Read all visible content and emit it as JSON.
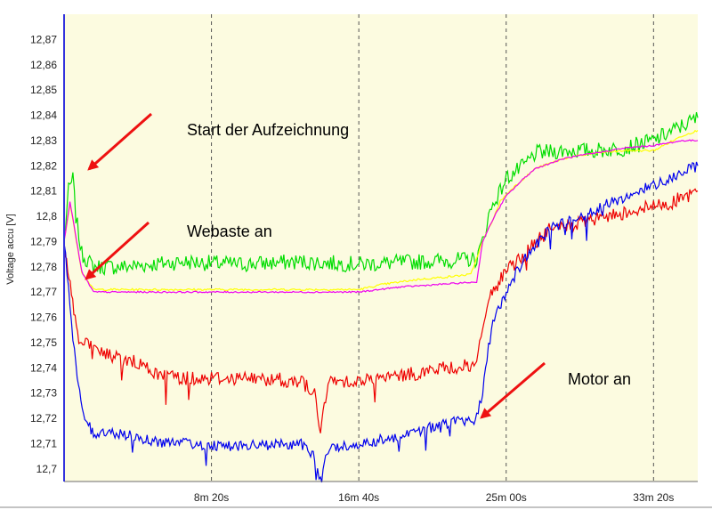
{
  "chart_data": {
    "type": "line",
    "title": "",
    "xlabel": "",
    "ylabel": "Voltage accu [V]",
    "x_unit": "s",
    "xlim": [
      0,
      2150
    ],
    "ylim": [
      12.695,
      12.88
    ],
    "yticks": [
      12.7,
      12.71,
      12.72,
      12.73,
      12.74,
      12.75,
      12.76,
      12.77,
      12.78,
      12.79,
      12.8,
      12.81,
      12.82,
      12.83,
      12.84,
      12.85,
      12.86,
      12.87
    ],
    "ytick_labels": [
      "12,7",
      "12,71",
      "12,72",
      "12,73",
      "12,74",
      "12,75",
      "12,76",
      "12,77",
      "12,78",
      "12,79",
      "12,8",
      "12,81",
      "12,82",
      "12,83",
      "12,84",
      "12,85",
      "12,86",
      "12,87"
    ],
    "xticks": [
      500,
      1000,
      1500,
      2000
    ],
    "xtick_labels": [
      "8m 20s",
      "16m 40s",
      "25m 00s",
      "33m 20s"
    ],
    "grid": true,
    "background": "#fcfbe0",
    "series": [
      {
        "color": "#00dd00",
        "x": [
          0,
          15,
          30,
          40,
          60,
          100,
          200,
          400,
          600,
          800,
          1000,
          1200,
          1400,
          1420,
          1440,
          1460,
          1480,
          1500,
          1560,
          1600,
          1700,
          1800,
          1900,
          2000,
          2100,
          2150
        ],
        "values": [
          12.79,
          12.81,
          12.815,
          12.8,
          12.785,
          12.78,
          12.78,
          12.782,
          12.781,
          12.782,
          12.781,
          12.782,
          12.783,
          12.79,
          12.8,
          12.806,
          12.81,
          12.815,
          12.82,
          12.825,
          12.826,
          12.826,
          12.827,
          12.83,
          12.836,
          12.839
        ]
      },
      {
        "color": "#ffff00",
        "x": [
          0,
          20,
          60,
          100,
          400,
          800,
          1000,
          1080,
          1200,
          1300,
          1380,
          1420,
          1460,
          1480,
          1520,
          1600,
          1700,
          1800,
          1900,
          2000,
          2100,
          2150
        ],
        "values": [
          12.79,
          12.805,
          12.778,
          12.771,
          12.771,
          12.771,
          12.771,
          12.773,
          12.775,
          12.776,
          12.777,
          12.79,
          12.8,
          12.806,
          12.811,
          12.819,
          12.823,
          12.825,
          12.826,
          12.826,
          12.832,
          12.834
        ]
      },
      {
        "color": "#ee00ee",
        "x": [
          0,
          20,
          60,
          100,
          400,
          800,
          1000,
          1140,
          1400,
          1420,
          1460,
          1500,
          1560,
          1600,
          1700,
          1800,
          1900,
          2000,
          2100,
          2150
        ],
        "values": [
          12.79,
          12.806,
          12.778,
          12.77,
          12.77,
          12.77,
          12.77,
          12.772,
          12.774,
          12.79,
          12.8,
          12.808,
          12.815,
          12.819,
          12.823,
          12.825,
          12.827,
          12.828,
          12.83,
          12.83
        ]
      },
      {
        "color": "#ee0000",
        "x": [
          0,
          25,
          50,
          100,
          150,
          250,
          300,
          400,
          600,
          800,
          850,
          870,
          900,
          1000,
          1100,
          1200,
          1300,
          1400,
          1420,
          1440,
          1470,
          1500,
          1560,
          1650,
          1750,
          1850,
          1950,
          2050,
          2150
        ],
        "values": [
          12.79,
          12.77,
          12.75,
          12.748,
          12.745,
          12.742,
          12.738,
          12.736,
          12.736,
          12.735,
          12.73,
          12.715,
          12.735,
          12.735,
          12.736,
          12.738,
          12.74,
          12.741,
          12.755,
          12.768,
          12.773,
          12.778,
          12.785,
          12.795,
          12.797,
          12.8,
          12.803,
          12.805,
          12.81
        ]
      },
      {
        "color": "#0000ee",
        "x": [
          0,
          20,
          40,
          70,
          100,
          200,
          300,
          400,
          600,
          800,
          850,
          870,
          900,
          1000,
          1100,
          1200,
          1300,
          1400,
          1420,
          1440,
          1460,
          1500,
          1560,
          1650,
          1750,
          1850,
          1950,
          2050,
          2150
        ],
        "values": [
          12.79,
          12.765,
          12.74,
          12.72,
          12.714,
          12.714,
          12.711,
          12.71,
          12.709,
          12.71,
          12.705,
          12.698,
          12.708,
          12.71,
          12.712,
          12.715,
          12.718,
          12.72,
          12.73,
          12.748,
          12.76,
          12.77,
          12.783,
          12.795,
          12.8,
          12.805,
          12.81,
          12.815,
          12.82
        ]
      }
    ],
    "annotations": [
      {
        "text": "Start der Aufzeichnung",
        "arrow_color": "#ee1111"
      },
      {
        "text": "Webaste an",
        "arrow_color": "#ee1111"
      },
      {
        "text": "Motor an",
        "arrow_color": "#ee1111"
      }
    ]
  }
}
